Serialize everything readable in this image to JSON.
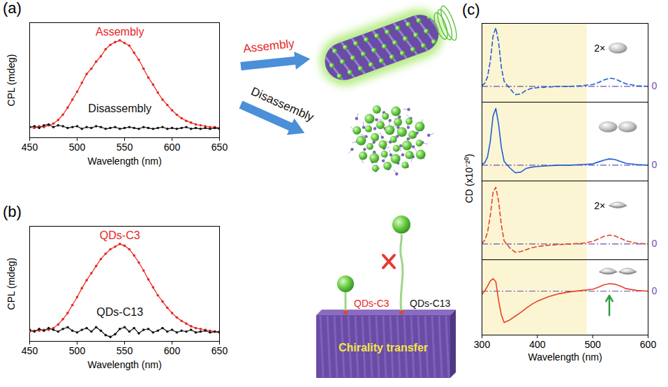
{
  "chart_data": [
    {
      "type": "line",
      "title": "(a)",
      "x_label": "Wavelength (nm)",
      "y_label": "CPL (mdeg)",
      "x": [
        450,
        455,
        460,
        465,
        470,
        475,
        480,
        485,
        490,
        495,
        500,
        505,
        510,
        515,
        520,
        525,
        530,
        535,
        540,
        545,
        550,
        555,
        560,
        565,
        570,
        575,
        580,
        585,
        590,
        595,
        600,
        605,
        610,
        615,
        620,
        625,
        630,
        635,
        640,
        645,
        650
      ],
      "xlim": [
        450,
        650
      ],
      "xticks": [
        450,
        500,
        550,
        600,
        650
      ],
      "ylim": [
        -0.1,
        1.2
      ],
      "tick_labels": "x",
      "series": [
        {
          "name": "Assembly",
          "color": "#e8251f",
          "marker": "dot",
          "line_style": "solid",
          "values": [
            0.02,
            0.01,
            0.03,
            0.02,
            0.04,
            0.06,
            0.1,
            0.16,
            0.24,
            0.33,
            0.42,
            0.52,
            0.62,
            0.68,
            0.76,
            0.82,
            0.9,
            0.95,
            0.98,
            1.0,
            0.97,
            0.94,
            0.86,
            0.78,
            0.68,
            0.58,
            0.5,
            0.41,
            0.33,
            0.27,
            0.21,
            0.16,
            0.12,
            0.09,
            0.07,
            0.05,
            0.04,
            0.03,
            0.02,
            0.02,
            0.01
          ]
        },
        {
          "name": "Disassembly",
          "color": "#111111",
          "marker": "dot",
          "line_style": "solid",
          "values": [
            0.02,
            0.03,
            0.01,
            0.04,
            0.05,
            0.02,
            0.04,
            0.03,
            0.01,
            0.02,
            0.03,
            0.0,
            0.02,
            0.01,
            0.03,
            0.02,
            0.0,
            0.01,
            0.02,
            0.0,
            0.01,
            0.02,
            0.01,
            0.0,
            0.02,
            0.01,
            0.0,
            0.01,
            0.02,
            0.0,
            0.01,
            0.0,
            0.01,
            0.02,
            0.0,
            0.01,
            0.0,
            0.01,
            0.0,
            0.01,
            0.0
          ]
        }
      ]
    },
    {
      "type": "line",
      "title": "(b)",
      "x_label": "Wavelength (nm)",
      "y_label": "CPL (mdeg)",
      "x": [
        450,
        455,
        460,
        465,
        470,
        475,
        480,
        485,
        490,
        495,
        500,
        505,
        510,
        515,
        520,
        525,
        530,
        535,
        540,
        545,
        550,
        555,
        560,
        565,
        570,
        575,
        580,
        585,
        590,
        595,
        600,
        605,
        610,
        615,
        620,
        625,
        630,
        635,
        640,
        645,
        650
      ],
      "xlim": [
        450,
        650
      ],
      "xticks": [
        450,
        500,
        550,
        600,
        650
      ],
      "ylim": [
        -0.1,
        1.2
      ],
      "tick_labels": "x",
      "series": [
        {
          "name": "QDs-C3",
          "color": "#e8251f",
          "marker": "dot",
          "line_style": "solid",
          "values": [
            0.01,
            0.02,
            0.02,
            0.03,
            0.03,
            0.05,
            0.09,
            0.15,
            0.22,
            0.31,
            0.4,
            0.5,
            0.59,
            0.67,
            0.75,
            0.83,
            0.89,
            0.94,
            0.97,
            1.0,
            0.98,
            0.94,
            0.87,
            0.79,
            0.7,
            0.6,
            0.51,
            0.42,
            0.35,
            0.28,
            0.22,
            0.17,
            0.13,
            0.1,
            0.07,
            0.05,
            0.04,
            0.03,
            0.02,
            0.01,
            0.01
          ]
        },
        {
          "name": "QDs-C13",
          "color": "#111111",
          "marker": "dot",
          "line_style": "solid",
          "values": [
            0.03,
            0.01,
            0.04,
            0.02,
            0.05,
            0.03,
            0.01,
            0.04,
            0.06,
            0.02,
            0.0,
            0.03,
            0.05,
            0.01,
            0.06,
            0.02,
            -0.03,
            -0.05,
            -0.02,
            0.04,
            0.06,
            0.01,
            0.05,
            -0.01,
            0.03,
            0.04,
            0.0,
            0.02,
            0.05,
            0.01,
            0.03,
            0.0,
            0.02,
            0.01,
            0.03,
            0.0,
            0.01,
            0.02,
            0.0,
            0.01,
            0.0
          ]
        }
      ]
    },
    {
      "type": "line",
      "title": "(c)",
      "x_label": "Wavelength (nm)",
      "y_label": "CD (x10⁻²⁰)",
      "x": [
        300,
        305,
        310,
        315,
        320,
        325,
        330,
        335,
        340,
        350,
        360,
        370,
        380,
        390,
        400,
        420,
        440,
        460,
        480,
        500,
        510,
        520,
        530,
        540,
        550,
        560,
        580,
        600
      ],
      "xlim": [
        300,
        600
      ],
      "xticks": [
        300,
        400,
        500,
        600
      ],
      "grid": true,
      "shaded_range": [
        300,
        490
      ],
      "arrow_x": 530,
      "series": [
        {
          "color": "#1f5fd6",
          "line_style": "dashed",
          "annotation": "2×",
          "ylim": [
            -2.5,
            10
          ],
          "yticks": [
            0
          ],
          "values": [
            0.1,
            0.5,
            1.5,
            4.0,
            8.0,
            9.3,
            7.0,
            3.0,
            0.8,
            -0.3,
            -1.3,
            -1.2,
            -0.6,
            -0.3,
            -0.2,
            -0.1,
            0,
            0,
            0.1,
            0.3,
            0.6,
            1.0,
            1.3,
            1.2,
            0.8,
            0.4,
            0.1,
            0
          ]
        },
        {
          "color": "#1f5fd6",
          "line_style": "solid",
          "ylim": [
            -2.5,
            10
          ],
          "yticks": [
            0
          ],
          "values": [
            0.1,
            0.4,
            1.3,
            3.8,
            7.8,
            9.0,
            6.5,
            2.8,
            0.6,
            -0.4,
            -1.2,
            -1.1,
            -0.5,
            -0.3,
            -0.2,
            -0.1,
            0,
            0,
            0.1,
            0.2,
            0.5,
            0.8,
            1.0,
            0.9,
            0.6,
            0.3,
            0.1,
            0
          ]
        },
        {
          "color": "#e5432b",
          "line_style": "dashed",
          "annotation": "2×",
          "ylim": [
            -2.5,
            10
          ],
          "yticks": [
            0
          ],
          "values": [
            0.1,
            0.6,
            1.8,
            4.5,
            8.2,
            9.0,
            6.8,
            3.0,
            0.5,
            -0.6,
            -1.3,
            -1.2,
            -0.9,
            -0.6,
            -0.4,
            -0.2,
            -0.1,
            0,
            0.1,
            0.4,
            0.8,
            1.2,
            1.4,
            1.3,
            0.9,
            0.5,
            0.1,
            0
          ]
        },
        {
          "color": "#e5432b",
          "line_style": "solid",
          "ylim": [
            -7,
            5
          ],
          "yticks": [
            0
          ],
          "values": [
            -0.5,
            0,
            0.8,
            1.6,
            2.0,
            1.5,
            -1.5,
            -3.8,
            -5.0,
            -4.6,
            -4.0,
            -3.4,
            -2.7,
            -2.1,
            -1.6,
            -0.9,
            -0.4,
            -0.1,
            0.1,
            0.3,
            0.6,
            1.0,
            1.2,
            1.1,
            0.8,
            0.4,
            0.1,
            0
          ]
        }
      ]
    }
  ],
  "diagram": {
    "assembly_label": "Assembly",
    "disassembly_label": "Disassembly",
    "short_ligand_label": "QDs-C3",
    "long_ligand_label": "QDs-C13",
    "substrate_label": "Chirality transfer"
  }
}
